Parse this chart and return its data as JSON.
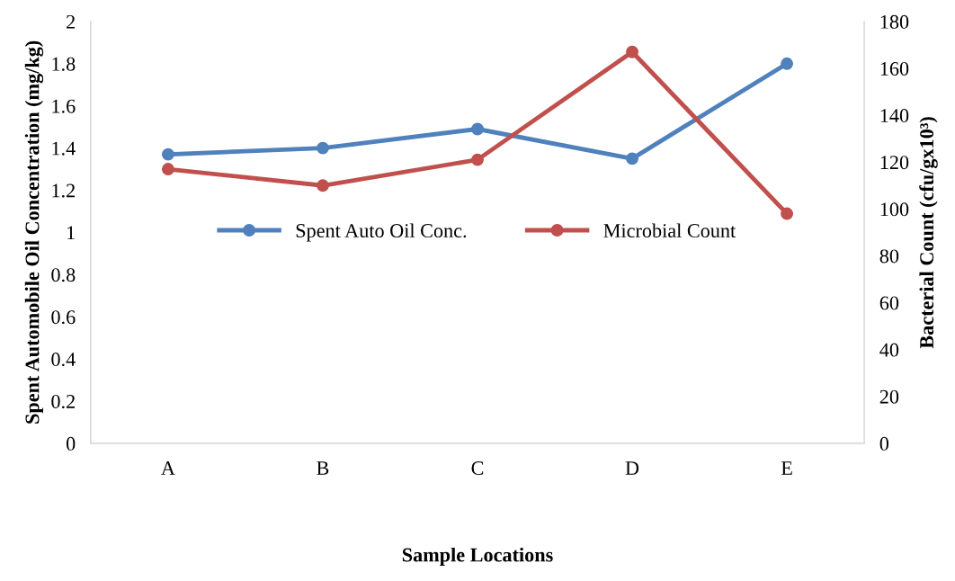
{
  "chart_data": {
    "type": "line",
    "xlabel": "Sample Locations",
    "ylabel": "Spent Automobile Oil Concentration (mg/kg)",
    "y2label": "Bacterial Count (cfu/gx10³)",
    "categories": [
      "A",
      "B",
      "C",
      "D",
      "E"
    ],
    "series": [
      {
        "name": "Spent Auto Oil Conc.",
        "color": "#4f81bd",
        "values": [
          1.37,
          1.4,
          1.49,
          1.35,
          1.8
        ]
      },
      {
        "name": "Microbial Count",
        "color": "#c0504d",
        "values": [
          117,
          110,
          121,
          167,
          98
        ],
        "axis": "y2"
      }
    ],
    "ylim": [
      0,
      2
    ],
    "yticks": [
      0,
      0.2,
      0.4,
      0.6,
      0.8,
      1,
      1.2,
      1.4,
      1.6,
      1.8,
      2
    ],
    "y2lim": [
      0,
      180
    ],
    "y2ticks": [
      0,
      20,
      40,
      60,
      80,
      100,
      120,
      140,
      160,
      180
    ],
    "marker": "circle",
    "line_style": "solid",
    "legend": "center",
    "grid": false
  }
}
